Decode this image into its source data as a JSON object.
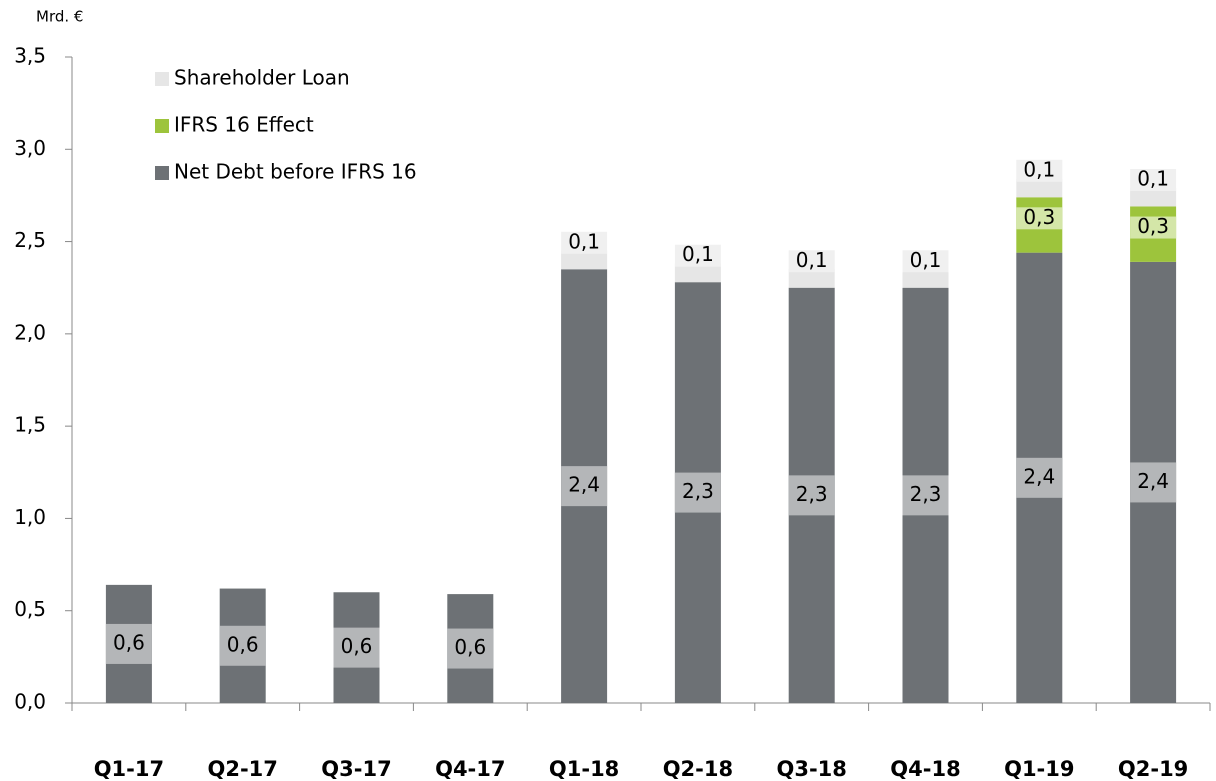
{
  "chart_data": {
    "type": "stacked_bar",
    "y_label": "Mrd. €",
    "categories": [
      "Q1-17",
      "Q2-17",
      "Q3-17",
      "Q4-17",
      "Q1-18",
      "Q2-18",
      "Q3-18",
      "Q4-18",
      "Q1-19",
      "Q2-19"
    ],
    "series": [
      {
        "name": "Net Debt before IFRS 16",
        "color": "#6d7175",
        "values": [
          0.64,
          0.62,
          0.6,
          0.59,
          2.35,
          2.28,
          2.25,
          2.25,
          2.44,
          2.39
        ],
        "value_labels": [
          "0,6",
          "0,6",
          "0,6",
          "0,6",
          "2,4",
          "2,3",
          "2,3",
          "2,3",
          "2,4",
          "2,4"
        ]
      },
      {
        "name": "IFRS 16 Effect",
        "color": "#9dc43c",
        "values": [
          null,
          null,
          null,
          null,
          null,
          null,
          null,
          null,
          0.3,
          0.3
        ],
        "value_labels": [
          null,
          null,
          null,
          null,
          null,
          null,
          null,
          null,
          "0,3",
          "0,3"
        ]
      },
      {
        "name": "Shareholder Loan",
        "color": "#e6e6e6",
        "values": [
          null,
          null,
          null,
          null,
          0.1,
          0.1,
          0.1,
          0.1,
          0.1,
          0.1
        ],
        "value_labels": [
          null,
          null,
          null,
          null,
          "0,1",
          "0,1",
          "0,1",
          "0,1",
          "0,1",
          "0,1"
        ]
      }
    ],
    "ylim": [
      0,
      3.5
    ],
    "yticks": [
      {
        "value": 0,
        "label": "0,0"
      },
      {
        "value": 0.5,
        "label": "0,5"
      },
      {
        "value": 1,
        "label": "1,0"
      },
      {
        "value": 1.5,
        "label": "1,5"
      },
      {
        "value": 2,
        "label": "2,0"
      },
      {
        "value": 2.5,
        "label": "2,5"
      },
      {
        "value": 3,
        "label": "3,0"
      },
      {
        "value": 3.5,
        "label": "3,5"
      }
    ],
    "legend": "upper left"
  }
}
